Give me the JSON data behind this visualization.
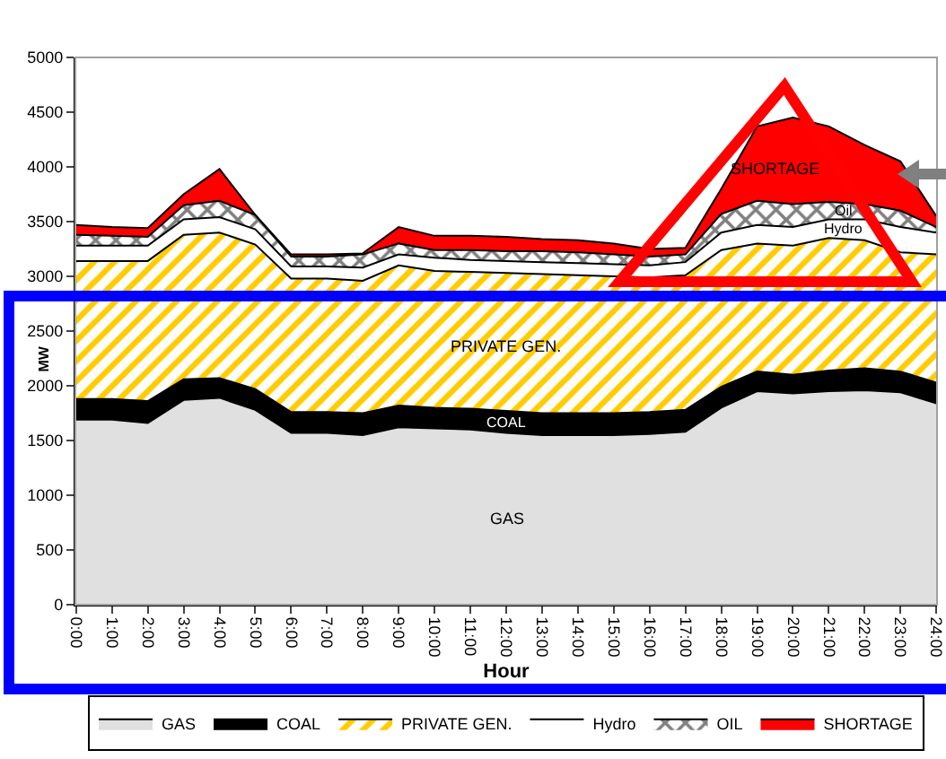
{
  "chart_data": {
    "type": "area",
    "stacked": true,
    "xlabel": "Hour",
    "ylabel": "MW",
    "categories": [
      "0:00",
      "1:00",
      "2:00",
      "3:00",
      "4:00",
      "5:00",
      "6:00",
      "7:00",
      "8:00",
      "9:00",
      "10:00",
      "11:00",
      "12:00",
      "13:00",
      "14:00",
      "15:00",
      "16:00",
      "17:00",
      "18:00",
      "19:00",
      "20:00",
      "21:00",
      "22:00",
      "23:00",
      "24:00"
    ],
    "ylim": [
      0,
      5000
    ],
    "yticks": [
      0,
      500,
      1000,
      1500,
      2000,
      2500,
      3000,
      3500,
      4000,
      4500,
      5000
    ],
    "grid": false,
    "legend": "bottom",
    "series": [
      {
        "name": "GAS",
        "color": "#e0e0e0",
        "values": [
          1690,
          1690,
          1660,
          1870,
          1890,
          1780,
          1570,
          1570,
          1550,
          1620,
          1610,
          1600,
          1570,
          1550,
          1550,
          1550,
          1560,
          1580,
          1800,
          1950,
          1930,
          1950,
          1960,
          1940,
          1840
        ]
      },
      {
        "name": "COAL",
        "color": "#000000",
        "values": [
          190,
          190,
          200,
          190,
          180,
          190,
          190,
          190,
          200,
          200,
          190,
          190,
          200,
          200,
          200,
          200,
          200,
          200,
          190,
          180,
          170,
          190,
          200,
          190,
          190
        ]
      },
      {
        "name": "PRIVATE GEN.",
        "color": "#ffcc00",
        "values": [
          1260,
          1260,
          1280,
          1320,
          1330,
          1320,
          1220,
          1220,
          1210,
          1280,
          1250,
          1250,
          1260,
          1270,
          1260,
          1250,
          1230,
          1230,
          1250,
          1170,
          1180,
          1210,
          1170,
          1090,
          1170
        ]
      },
      {
        "name": "Hydro",
        "color": "#ffffff",
        "values": [
          140,
          140,
          140,
          140,
          140,
          140,
          110,
          110,
          120,
          100,
          120,
          110,
          110,
          110,
          110,
          110,
          110,
          120,
          160,
          170,
          170,
          170,
          190,
          230,
          200
        ]
      },
      {
        "name": "OIL",
        "color": "#c0c0c0",
        "values": [
          100,
          90,
          80,
          130,
          150,
          130,
          90,
          90,
          120,
          100,
          70,
          90,
          90,
          100,
          100,
          90,
          80,
          70,
          170,
          220,
          210,
          160,
          140,
          150,
          50
        ]
      },
      {
        "name": "SHORTAGE",
        "color": "#ff0000",
        "values": [
          90,
          80,
          80,
          100,
          290,
          0,
          20,
          20,
          10,
          150,
          130,
          130,
          130,
          110,
          110,
          100,
          70,
          60,
          230,
          680,
          790,
          690,
          540,
          450,
          100
        ]
      }
    ],
    "annotations": [
      "GAS",
      "COAL",
      "PRIVATE GEN.",
      "Hydro",
      "Oil",
      "SHORTAGE"
    ]
  }
}
